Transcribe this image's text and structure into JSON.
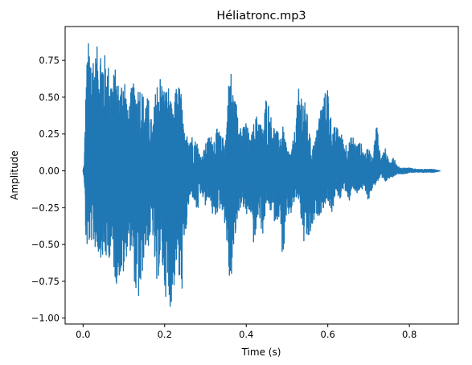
{
  "chart_data": {
    "type": "line",
    "title": "Héliatronc.mp3",
    "xlabel": "Time (s)",
    "ylabel": "Amplitude",
    "xlim": [
      -0.044,
      0.92
    ],
    "ylim": [
      -1.04,
      0.98
    ],
    "xticks": [
      0.0,
      0.2,
      0.4,
      0.6,
      0.8
    ],
    "xtick_labels": [
      "0.0",
      "0.2",
      "0.4",
      "0.6",
      "0.8"
    ],
    "yticks": [
      -1.0,
      -0.75,
      -0.5,
      -0.25,
      0.0,
      0.25,
      0.5,
      0.75
    ],
    "ytick_labels": [
      "−1.00",
      "−0.75",
      "−0.50",
      "−0.25",
      "0.00",
      "0.25",
      "0.50",
      "0.75"
    ],
    "grid": false,
    "legend": false,
    "series": [
      {
        "color": "#1f77b4",
        "duration": 0.876,
        "envelope": {
          "t": [
            0.0,
            0.003,
            0.005,
            0.008,
            0.012,
            0.02,
            0.03,
            0.04,
            0.05,
            0.06,
            0.07,
            0.08,
            0.09,
            0.1,
            0.11,
            0.12,
            0.13,
            0.14,
            0.15,
            0.16,
            0.17,
            0.18,
            0.19,
            0.2,
            0.21,
            0.22,
            0.23,
            0.24,
            0.25,
            0.26,
            0.27,
            0.28,
            0.29,
            0.3,
            0.31,
            0.32,
            0.33,
            0.34,
            0.35,
            0.36,
            0.37,
            0.38,
            0.39,
            0.4,
            0.41,
            0.42,
            0.43,
            0.44,
            0.45,
            0.46,
            0.47,
            0.48,
            0.49,
            0.5,
            0.51,
            0.52,
            0.53,
            0.54,
            0.55,
            0.56,
            0.57,
            0.58,
            0.59,
            0.6,
            0.61,
            0.62,
            0.63,
            0.64,
            0.65,
            0.66,
            0.67,
            0.68,
            0.69,
            0.7,
            0.71,
            0.72,
            0.73,
            0.74,
            0.75,
            0.76,
            0.77,
            0.78,
            0.79,
            0.8,
            0.82,
            0.84,
            0.86,
            0.876
          ],
          "max": [
            0.01,
            0.05,
            0.35,
            0.68,
            0.88,
            0.86,
            0.8,
            0.9,
            0.82,
            0.75,
            0.65,
            0.7,
            0.55,
            0.74,
            0.4,
            0.6,
            0.58,
            0.6,
            0.5,
            0.5,
            0.3,
            0.62,
            0.66,
            0.56,
            0.58,
            0.38,
            0.62,
            0.55,
            0.2,
            0.3,
            0.22,
            0.2,
            0.08,
            0.18,
            0.25,
            0.22,
            0.3,
            0.22,
            0.25,
            0.76,
            0.5,
            0.45,
            0.28,
            0.35,
            0.2,
            0.35,
            0.4,
            0.28,
            0.55,
            0.38,
            0.3,
            0.25,
            0.3,
            0.15,
            0.12,
            0.3,
            0.6,
            0.52,
            0.38,
            0.15,
            0.22,
            0.42,
            0.5,
            0.6,
            0.3,
            0.3,
            0.28,
            0.2,
            0.18,
            0.25,
            0.18,
            0.2,
            0.12,
            0.16,
            0.08,
            0.35,
            0.08,
            0.16,
            0.06,
            0.12,
            0.03,
            0.02,
            0.02,
            0.02,
            0.01,
            0.01,
            0.01,
            0.0
          ],
          "min": [
            -0.01,
            -0.05,
            -0.35,
            -0.55,
            -0.52,
            -0.48,
            -0.53,
            -0.58,
            -0.6,
            -0.62,
            -0.55,
            -0.78,
            -0.72,
            -0.72,
            -0.5,
            -0.58,
            -0.88,
            -0.9,
            -0.55,
            -0.52,
            -0.4,
            -0.86,
            -0.58,
            -0.82,
            -0.95,
            -0.88,
            -0.6,
            -0.93,
            -0.5,
            -0.2,
            -0.18,
            -0.3,
            -0.15,
            -0.25,
            -0.18,
            -0.35,
            -0.28,
            -0.25,
            -0.4,
            -0.83,
            -0.55,
            -0.3,
            -0.22,
            -0.32,
            -0.28,
            -0.55,
            -0.28,
            -0.45,
            -0.22,
            -0.28,
            -0.35,
            -0.32,
            -0.62,
            -0.32,
            -0.3,
            -0.2,
            -0.2,
            -0.5,
            -0.5,
            -0.42,
            -0.32,
            -0.3,
            -0.25,
            -0.2,
            -0.3,
            -0.15,
            -0.2,
            -0.1,
            -0.25,
            -0.1,
            -0.18,
            -0.12,
            -0.15,
            -0.2,
            -0.12,
            -0.08,
            -0.05,
            -0.08,
            -0.05,
            -0.04,
            -0.02,
            -0.02,
            -0.02,
            -0.01,
            -0.01,
            -0.01,
            -0.01,
            0.0
          ]
        }
      }
    ]
  }
}
